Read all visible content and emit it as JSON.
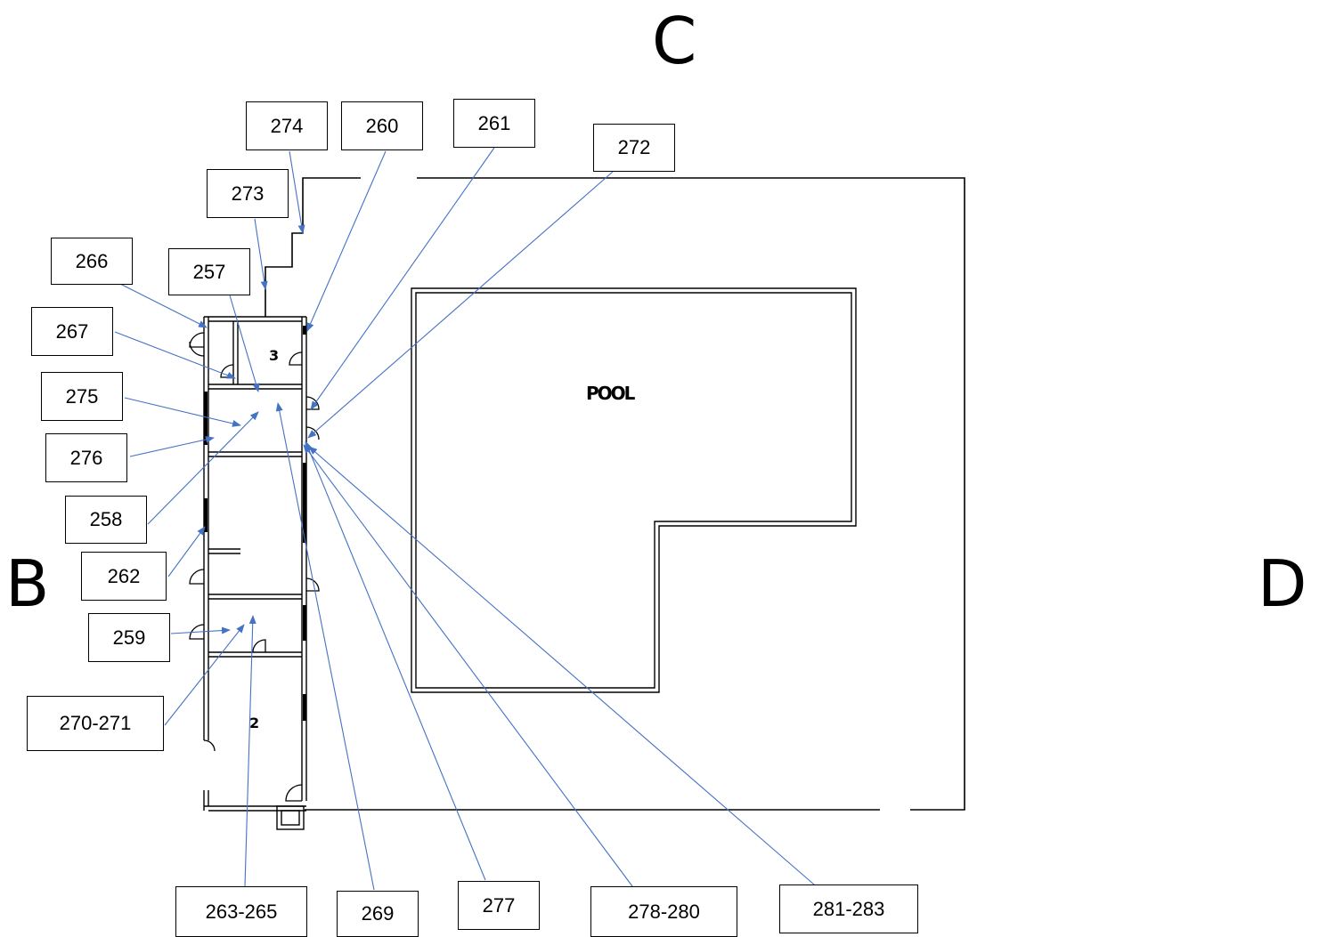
{
  "directions": {
    "top": "C",
    "left": "B",
    "right": "D"
  },
  "pool_label": "POOL",
  "room_labels": {
    "upper": "3",
    "lower": "2"
  },
  "callouts": {
    "c274": "274",
    "c260": "260",
    "c261": "261",
    "c272": "272",
    "c273": "273",
    "c266": "266",
    "c257": "257",
    "c267": "267",
    "c275": "275",
    "c276": "276",
    "c258": "258",
    "c262": "262",
    "c259": "259",
    "c270_271": "270-271",
    "c263_265": "263-265",
    "c269": "269",
    "c277": "277",
    "c278_280": "278-280",
    "c281_283": "281-283"
  },
  "colors": {
    "leader": "#4472c4",
    "wall": "#000000"
  }
}
